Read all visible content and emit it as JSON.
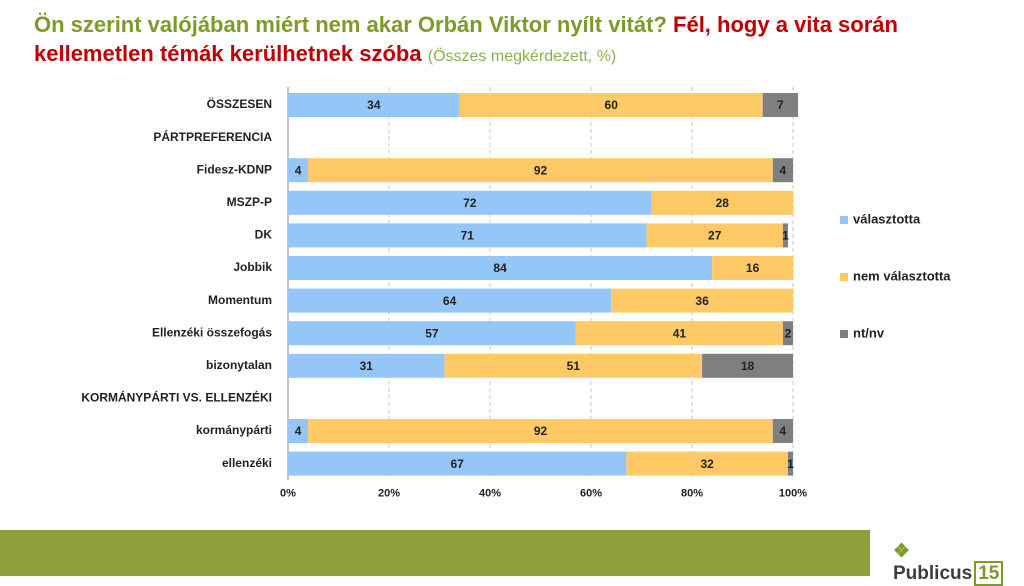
{
  "chart_data": {
    "type": "stacked-bar-horizontal",
    "title": "Ön szerint valójában miért nem akar Orbán Viktor nyílt vitát?",
    "title_highlight": "Fél, hogy a vita során kellemetlen témák kerülhetnek szóba",
    "subtitle": "(Összes megkérdezett, %)",
    "categories": [
      "ÖSSZESEN",
      "PÁRTPREFERENCIA",
      "Fidesz-KDNP",
      "MSZP-P",
      "DK",
      "Jobbik",
      "Momentum",
      "Ellenzéki összefogás",
      "bizonytalan",
      "KORMÁNYPÁRTI VS. ELLENZÉKI",
      "kormánypárti",
      "ellenzéki"
    ],
    "series": [
      {
        "name": "választotta",
        "color": "#94c6f7",
        "values": [
          34,
          null,
          4,
          72,
          71,
          84,
          64,
          57,
          31,
          null,
          4,
          67
        ]
      },
      {
        "name": "nem választotta",
        "color": "#ffca66",
        "values": [
          60,
          null,
          92,
          28,
          27,
          16,
          36,
          41,
          51,
          null,
          92,
          32
        ]
      },
      {
        "name": "nt/nv",
        "color": "#7f7f7f",
        "values": [
          7,
          null,
          4,
          null,
          1,
          null,
          null,
          2,
          18,
          null,
          4,
          1
        ]
      }
    ],
    "xlim": [
      0,
      100
    ],
    "xticks": [
      {
        "value": 0,
        "label": "0%"
      },
      {
        "value": 20,
        "label": "20%"
      },
      {
        "value": 40,
        "label": "40%"
      },
      {
        "value": 60,
        "label": "60%"
      },
      {
        "value": 80,
        "label": "80%"
      },
      {
        "value": 100,
        "label": "100%"
      }
    ],
    "grid": true,
    "legend": "right"
  },
  "footer": {
    "brand": "Publicus",
    "number": "15"
  }
}
